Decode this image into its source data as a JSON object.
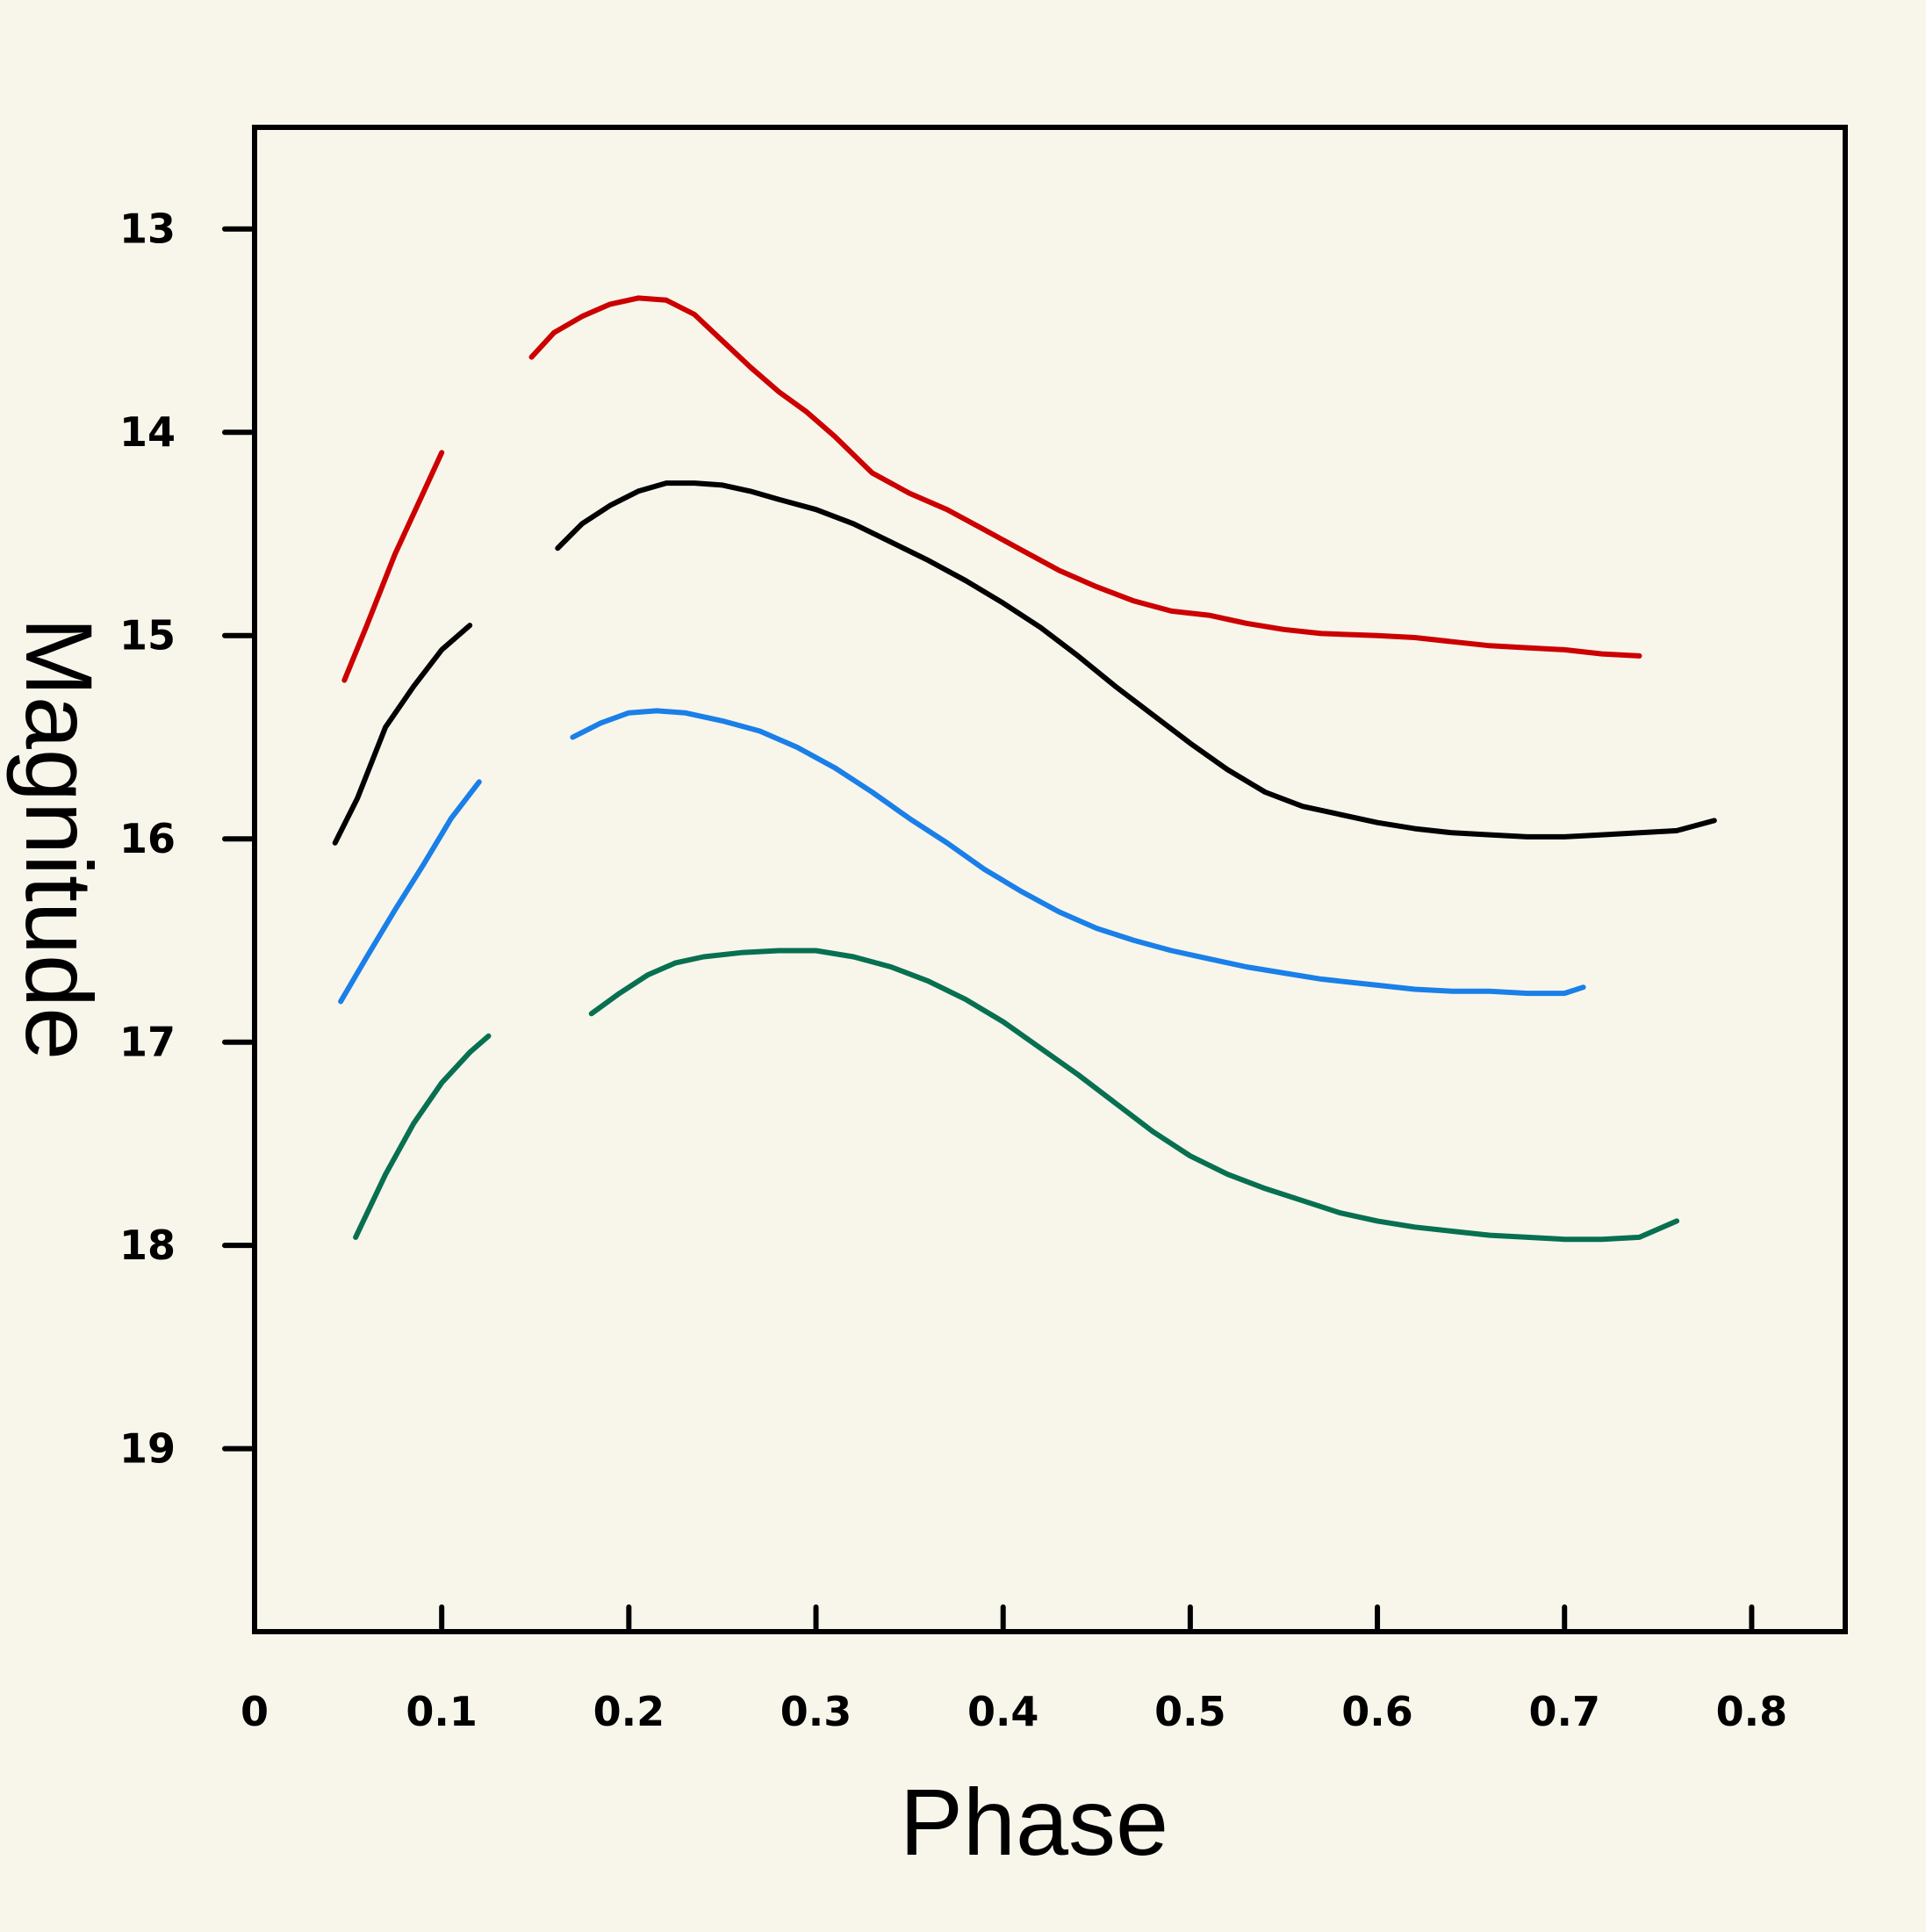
{
  "chart_data": {
    "type": "line",
    "title": "",
    "xlabel": "Phase",
    "ylabel": "Magnitude",
    "xlim": [
      0,
      0.85
    ],
    "ylim": [
      19.9,
      12.5
    ],
    "y_inverted": true,
    "grid": false,
    "legend": "none",
    "x_ticks": [
      {
        "value": 0,
        "label": "0"
      },
      {
        "value": 0.1,
        "label": "0.1"
      },
      {
        "value": 0.2,
        "label": "0.2"
      },
      {
        "value": 0.3,
        "label": "0.3"
      },
      {
        "value": 0.4,
        "label": "0.4"
      },
      {
        "value": 0.5,
        "label": "0.5"
      },
      {
        "value": 0.6,
        "label": "0.6"
      },
      {
        "value": 0.7,
        "label": "0.7"
      },
      {
        "value": 0.8,
        "label": "0.8"
      }
    ],
    "y_ticks": [
      {
        "value": 13,
        "label": "13"
      },
      {
        "value": 14,
        "label": "14"
      },
      {
        "value": 15,
        "label": "15"
      },
      {
        "value": 16,
        "label": "16"
      },
      {
        "value": 17,
        "label": "17"
      },
      {
        "value": 18,
        "label": "18"
      },
      {
        "value": 19,
        "label": "19"
      }
    ],
    "series": [
      {
        "color": "#cc0000",
        "segments": [
          {
            "x": [
              0.048,
              0.06,
              0.075,
              0.09,
              0.1
            ],
            "y": [
              15.22,
              14.95,
              14.6,
              14.3,
              14.1
            ]
          },
          {
            "x": [
              0.148,
              0.16,
              0.175,
              0.19,
              0.205,
              0.22,
              0.235,
              0.25,
              0.265,
              0.28,
              0.295,
              0.31,
              0.33,
              0.35,
              0.37,
              0.39,
              0.41,
              0.43,
              0.45,
              0.47,
              0.49,
              0.51,
              0.53,
              0.55,
              0.57,
              0.6,
              0.62,
              0.64,
              0.66,
              0.68,
              0.7,
              0.72,
              0.74
            ],
            "y": [
              13.63,
              13.51,
              13.43,
              13.37,
              13.34,
              13.35,
              13.42,
              13.55,
              13.68,
              13.8,
              13.9,
              14.02,
              14.2,
              14.3,
              14.38,
              14.48,
              14.58,
              14.68,
              14.76,
              14.83,
              14.88,
              14.9,
              14.94,
              14.97,
              14.99,
              15.0,
              15.01,
              15.03,
              15.05,
              15.06,
              15.07,
              15.09,
              15.1
            ]
          }
        ]
      },
      {
        "color": "#000000",
        "segments": [
          {
            "x": [
              0.043,
              0.055,
              0.07,
              0.085,
              0.1,
              0.115
            ],
            "y": [
              16.02,
              15.8,
              15.45,
              15.25,
              15.07,
              14.95
            ]
          },
          {
            "x": [
              0.162,
              0.175,
              0.19,
              0.205,
              0.22,
              0.235,
              0.25,
              0.265,
              0.28,
              0.3,
              0.32,
              0.34,
              0.36,
              0.38,
              0.4,
              0.42,
              0.44,
              0.46,
              0.48,
              0.5,
              0.52,
              0.54,
              0.56,
              0.58,
              0.6,
              0.62,
              0.64,
              0.66,
              0.68,
              0.7,
              0.72,
              0.74,
              0.76,
              0.78
            ],
            "y": [
              14.57,
              14.45,
              14.36,
              14.29,
              14.25,
              14.25,
              14.26,
              14.29,
              14.33,
              14.38,
              14.45,
              14.54,
              14.63,
              14.73,
              14.84,
              14.96,
              15.1,
              15.25,
              15.39,
              15.53,
              15.66,
              15.77,
              15.84,
              15.88,
              15.92,
              15.95,
              15.97,
              15.98,
              15.99,
              15.99,
              15.98,
              15.97,
              15.96,
              15.91
            ]
          }
        ]
      },
      {
        "color": "#1a7fe8",
        "segments": [
          {
            "x": [
              0.046,
              0.06,
              0.075,
              0.09,
              0.105,
              0.12
            ],
            "y": [
              16.8,
              16.58,
              16.35,
              16.13,
              15.9,
              15.72
            ]
          },
          {
            "x": [
              0.17,
              0.185,
              0.2,
              0.215,
              0.23,
              0.25,
              0.27,
              0.29,
              0.31,
              0.33,
              0.35,
              0.37,
              0.39,
              0.41,
              0.43,
              0.45,
              0.47,
              0.49,
              0.51,
              0.53,
              0.55,
              0.57,
              0.6,
              0.62,
              0.64,
              0.66,
              0.68,
              0.7,
              0.71
            ],
            "y": [
              15.5,
              15.43,
              15.38,
              15.37,
              15.38,
              15.42,
              15.47,
              15.55,
              15.65,
              15.77,
              15.9,
              16.02,
              16.15,
              16.26,
              16.36,
              16.44,
              16.5,
              16.55,
              16.59,
              16.63,
              16.66,
              16.69,
              16.72,
              16.74,
              16.75,
              16.75,
              16.76,
              16.76,
              16.73
            ]
          }
        ]
      },
      {
        "color": "#077050",
        "segments": [
          {
            "x": [
              0.054,
              0.07,
              0.085,
              0.1,
              0.115,
              0.125
            ],
            "y": [
              17.96,
              17.65,
              17.4,
              17.2,
              17.05,
              16.97
            ]
          },
          {
            "x": [
              0.18,
              0.195,
              0.21,
              0.225,
              0.24,
              0.26,
              0.28,
              0.3,
              0.32,
              0.34,
              0.36,
              0.38,
              0.4,
              0.42,
              0.44,
              0.46,
              0.48,
              0.5,
              0.52,
              0.54,
              0.56,
              0.58,
              0.6,
              0.62,
              0.64,
              0.66,
              0.68,
              0.7,
              0.72,
              0.74,
              0.76
            ],
            "y": [
              16.86,
              16.76,
              16.67,
              16.61,
              16.58,
              16.56,
              16.55,
              16.55,
              16.58,
              16.63,
              16.7,
              16.79,
              16.9,
              17.03,
              17.16,
              17.3,
              17.44,
              17.56,
              17.65,
              17.72,
              17.78,
              17.84,
              17.88,
              17.91,
              17.93,
              17.95,
              17.96,
              17.97,
              17.97,
              17.96,
              17.88
            ]
          }
        ]
      }
    ]
  }
}
